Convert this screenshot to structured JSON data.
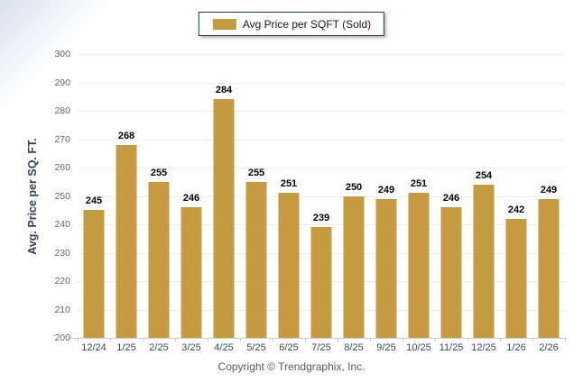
{
  "chart_data": {
    "type": "bar",
    "title": "",
    "legend": "Avg Price per SQFT (Sold)",
    "legend_position": "top",
    "categories": [
      "12/24",
      "1/25",
      "2/25",
      "3/25",
      "4/25",
      "5/25",
      "6/25",
      "7/25",
      "8/25",
      "9/25",
      "10/25",
      "11/25",
      "12/25",
      "1/26",
      "2/26"
    ],
    "values": [
      245,
      268,
      255,
      246,
      284,
      255,
      251,
      239,
      250,
      249,
      251,
      246,
      254,
      242,
      249
    ],
    "xlabel": "",
    "ylabel": "Avg. Price per SQ. FT.",
    "ylim": [
      200,
      300
    ],
    "ytick_step": 10,
    "grid": true,
    "bar_color": "#c49b40"
  },
  "colors": {
    "bar": "#c49b40",
    "legend_border": "#1f3864",
    "gridline": "#ececec",
    "axis_line": "#cccccc",
    "value_label": "#000000",
    "background_tint": "#d9e1ef"
  },
  "footer": {
    "copyright": "Copyright © Trendgraphix, Inc."
  }
}
